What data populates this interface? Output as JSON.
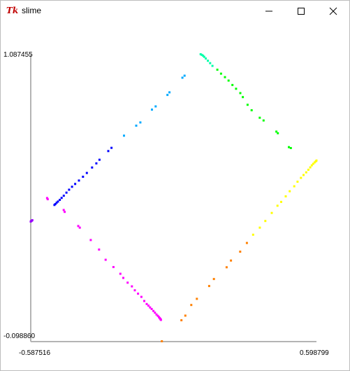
{
  "window": {
    "title": "slime",
    "app_icon": "tk-feather-icon"
  },
  "title_buttons": {
    "minimize_icon": "minimize-icon",
    "maximize_icon": "maximize-icon",
    "close_icon": "close-icon"
  },
  "labels": {
    "ymax": "1.087455",
    "ymin": "-0.098860",
    "xmin": "-0.587516",
    "xmax": "0.598799"
  },
  "chart_data": {
    "type": "scatter",
    "xlim": [
      -0.587516,
      0.598799
    ],
    "ylim": [
      -0.09886,
      1.087455
    ],
    "grid": false,
    "series": [
      {
        "color": "#ff00ff",
        "points": [
          [
            -0.5197,
            0.4945
          ],
          [
            -0.5171,
            0.4896
          ],
          [
            -0.4505,
            0.4451
          ],
          [
            -0.4465,
            0.4372
          ],
          [
            -0.3904,
            0.3788
          ],
          [
            -0.3839,
            0.3722
          ],
          [
            -0.3385,
            0.3209
          ],
          [
            -0.3037,
            0.2815
          ],
          [
            -0.2767,
            0.2394
          ],
          [
            -0.2441,
            0.2092
          ],
          [
            -0.2153,
            0.1816
          ],
          [
            -0.2033,
            0.1645
          ],
          [
            -0.1852,
            0.1447
          ],
          [
            -0.1676,
            0.1293
          ],
          [
            -0.1553,
            0.1131
          ],
          [
            -0.1421,
            0.0992
          ],
          [
            -0.1281,
            0.0859
          ],
          [
            -0.1161,
            0.069
          ],
          [
            -0.1059,
            0.0565
          ],
          [
            -0.0987,
            0.0499
          ],
          [
            -0.0921,
            0.0424
          ],
          [
            -0.0855,
            0.0359
          ],
          [
            -0.0783,
            0.0279
          ],
          [
            -0.0717,
            0.0205
          ],
          [
            -0.0655,
            0.0132
          ],
          [
            -0.0599,
            0.0075
          ],
          [
            -0.0554,
            0.0025
          ],
          [
            -0.0524,
            -0.0013
          ],
          [
            -0.0501,
            -0.0043
          ],
          [
            -0.0479,
            -0.0073
          ],
          [
            -0.047,
            -0.0091
          ]
        ]
      },
      {
        "color": "#ff8000",
        "points": [
          [
            -0.0431,
            -0.0973
          ],
          [
            0.038,
            -0.0107
          ],
          [
            0.0543,
            0.0085
          ],
          [
            0.079,
            0.0524
          ],
          [
            0.1021,
            0.0779
          ],
          [
            0.1532,
            0.1309
          ],
          [
            0.1729,
            0.1599
          ],
          [
            0.2257,
            0.2084
          ],
          [
            0.2439,
            0.2363
          ],
          [
            0.2822,
            0.2729
          ],
          [
            0.3099,
            0.3088
          ]
        ]
      },
      {
        "color": "#ffff00",
        "points": [
          [
            0.3358,
            0.3429
          ],
          [
            0.3637,
            0.3721
          ],
          [
            0.3865,
            0.3998
          ],
          [
            0.4131,
            0.4331
          ],
          [
            0.437,
            0.4628
          ],
          [
            0.4522,
            0.4788
          ],
          [
            0.4712,
            0.5016
          ],
          [
            0.4878,
            0.5226
          ],
          [
            0.5067,
            0.5433
          ],
          [
            0.5201,
            0.562
          ],
          [
            0.5345,
            0.5778
          ],
          [
            0.545,
            0.5899
          ],
          [
            0.5561,
            0.6009
          ],
          [
            0.5651,
            0.6116
          ],
          [
            0.573,
            0.6212
          ],
          [
            0.5795,
            0.6296
          ],
          [
            0.5855,
            0.6361
          ],
          [
            0.5914,
            0.642
          ],
          [
            0.5962,
            0.6463
          ],
          [
            0.5988,
            0.6498
          ]
        ]
      },
      {
        "color": "#00ff00",
        "points": [
          [
            0.4924,
            0.7011
          ],
          [
            0.4843,
            0.7048
          ],
          [
            0.4385,
            0.7626
          ],
          [
            0.4322,
            0.7693
          ],
          [
            0.3792,
            0.8152
          ],
          [
            0.3632,
            0.8264
          ],
          [
            0.3296,
            0.8575
          ],
          [
            0.3128,
            0.8801
          ],
          [
            0.2932,
            0.9117
          ],
          [
            0.2826,
            0.9282
          ],
          [
            0.2649,
            0.9462
          ],
          [
            0.25,
            0.9618
          ],
          [
            0.2339,
            0.98
          ],
          [
            0.2187,
            0.9943
          ],
          [
            0.2026,
            1.0088
          ],
          [
            0.1872,
            1.025
          ]
        ]
      },
      {
        "color": "#00ffaa",
        "points": [
          [
            0.1669,
            1.041
          ],
          [
            0.1574,
            1.0521
          ],
          [
            0.148,
            1.062
          ],
          [
            0.1393,
            1.0712
          ],
          [
            0.1326,
            1.0782
          ],
          [
            0.1279,
            1.0829
          ],
          [
            0.1228,
            1.0863
          ],
          [
            0.1179,
            1.0888
          ]
        ]
      },
      {
        "color": "#00aaff",
        "points": [
          [
            0.0512,
            1.0005
          ],
          [
            0.0422,
            0.9919
          ],
          [
            -0.0115,
            0.9315
          ],
          [
            -0.0199,
            0.9208
          ],
          [
            -0.0689,
            0.8733
          ],
          [
            -0.0843,
            0.8601
          ],
          [
            -0.1325,
            0.8072
          ],
          [
            -0.1494,
            0.7938
          ],
          [
            -0.2002,
            0.7524
          ]
        ]
      },
      {
        "color": "#0000ff",
        "points": [
          [
            -0.2522,
            0.702
          ],
          [
            -0.2655,
            0.6888
          ],
          [
            -0.3021,
            0.6528
          ],
          [
            -0.3151,
            0.6377
          ],
          [
            -0.3329,
            0.6206
          ],
          [
            -0.3547,
            0.5983
          ],
          [
            -0.3707,
            0.5825
          ],
          [
            -0.3873,
            0.567
          ],
          [
            -0.403,
            0.5528
          ],
          [
            -0.416,
            0.5413
          ],
          [
            -0.4283,
            0.5291
          ],
          [
            -0.4393,
            0.5169
          ],
          [
            -0.4502,
            0.5041
          ],
          [
            -0.4594,
            0.4952
          ],
          [
            -0.4669,
            0.4872
          ],
          [
            -0.4745,
            0.4801
          ],
          [
            -0.4798,
            0.4754
          ],
          [
            -0.4852,
            0.4698
          ],
          [
            -0.4892,
            0.4659
          ]
        ]
      },
      {
        "color": "#9900ff",
        "points": [
          [
            -0.5874,
            0.3974
          ],
          [
            -0.5853,
            0.3998
          ],
          [
            -0.5829,
            0.4013
          ],
          [
            -0.5807,
            0.4029
          ]
        ]
      }
    ]
  }
}
